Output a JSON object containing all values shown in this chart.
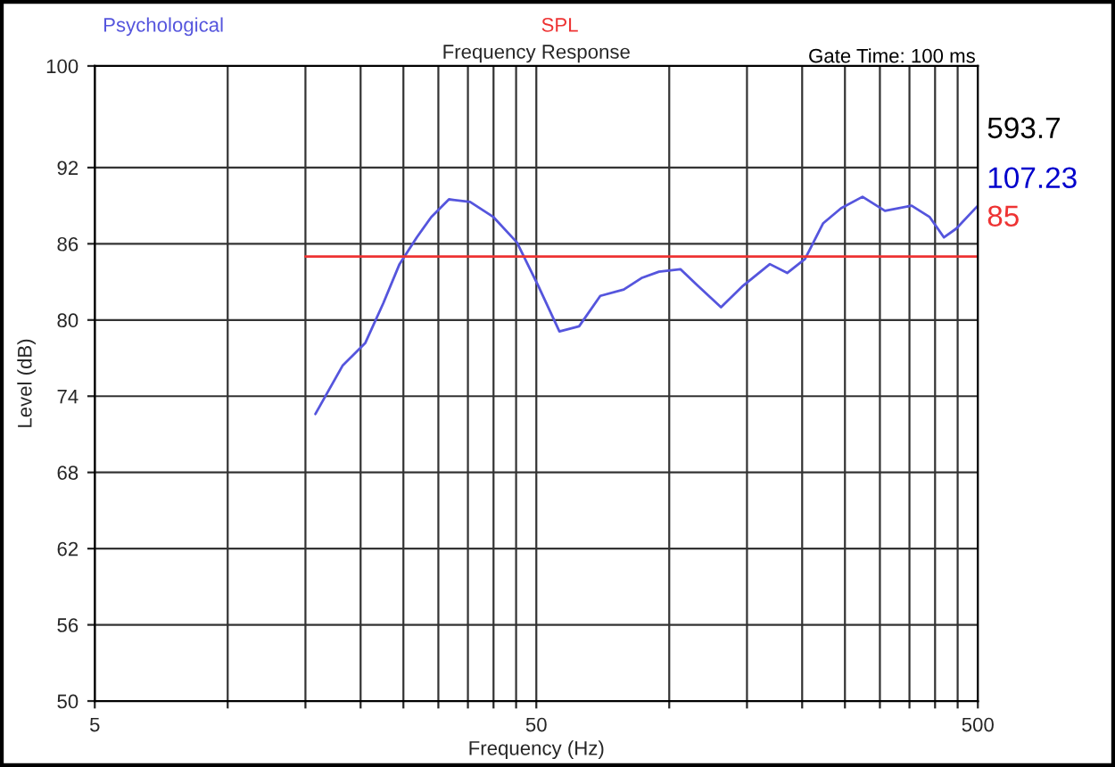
{
  "chart_data": {
    "type": "line",
    "title": "Frequency Response",
    "xlabel": "Frequency (Hz)",
    "ylabel": "Level (dB)",
    "annotations": [
      "Gate Time: 100 ms",
      "593.7",
      "107.23",
      "85"
    ],
    "log": "x",
    "grid": true,
    "legend": "top",
    "marker": "none",
    "line_style": "solid",
    "xlim": [
      5,
      500
    ],
    "xticks": [
      5,
      {
        "value": 10,
        "label": null
      },
      {
        "value": 15,
        "label": null
      },
      {
        "value": 20,
        "label": null
      },
      {
        "value": 25,
        "label": null
      },
      {
        "value": 30,
        "label": null
      },
      {
        "value": 35,
        "label": null
      },
      {
        "value": 40,
        "label": null
      },
      {
        "value": 45,
        "label": null
      },
      50,
      {
        "value": 100,
        "label": null
      },
      {
        "value": 150,
        "label": null
      },
      {
        "value": 200,
        "label": null
      },
      {
        "value": 250,
        "label": null
      },
      {
        "value": 300,
        "label": null
      },
      {
        "value": 350,
        "label": null
      },
      {
        "value": 400,
        "label": null
      },
      {
        "value": 450,
        "label": null
      },
      500
    ],
    "ylim": [
      50,
      100
    ],
    "yticks": [
      50,
      56,
      62,
      68,
      74,
      80,
      86,
      92,
      100
    ],
    "series": [
      {
        "name": "Psychological",
        "color": "#5555dd",
        "x": [
          15.8,
          18.2,
          20.5,
          22.5,
          24.5,
          26.8,
          28.9,
          31.7,
          35.4,
          40,
          45.2,
          50.5,
          56.4,
          62.5,
          69.8,
          78.9,
          86.5,
          94.8,
          106,
          116,
          131,
          147,
          169,
          185,
          203,
          223,
          245,
          274,
          308,
          354,
          389,
          419,
          447,
          500
        ],
        "values": [
          72.6,
          76.4,
          78.2,
          81.3,
          84.4,
          86.5,
          88.1,
          89.5,
          89.3,
          88.1,
          86.1,
          82.7,
          79.1,
          79.5,
          81.9,
          82.4,
          83.3,
          83.8,
          84.0,
          82.7,
          81.0,
          82.7,
          84.4,
          83.7,
          84.8,
          87.6,
          88.8,
          89.7,
          88.6,
          89.0,
          88.1,
          86.5,
          87.2,
          89.0
        ]
      },
      {
        "name": "SPL",
        "color": "#ee3333",
        "x": [
          15,
          500
        ],
        "values": [
          85,
          85
        ]
      }
    ]
  }
}
